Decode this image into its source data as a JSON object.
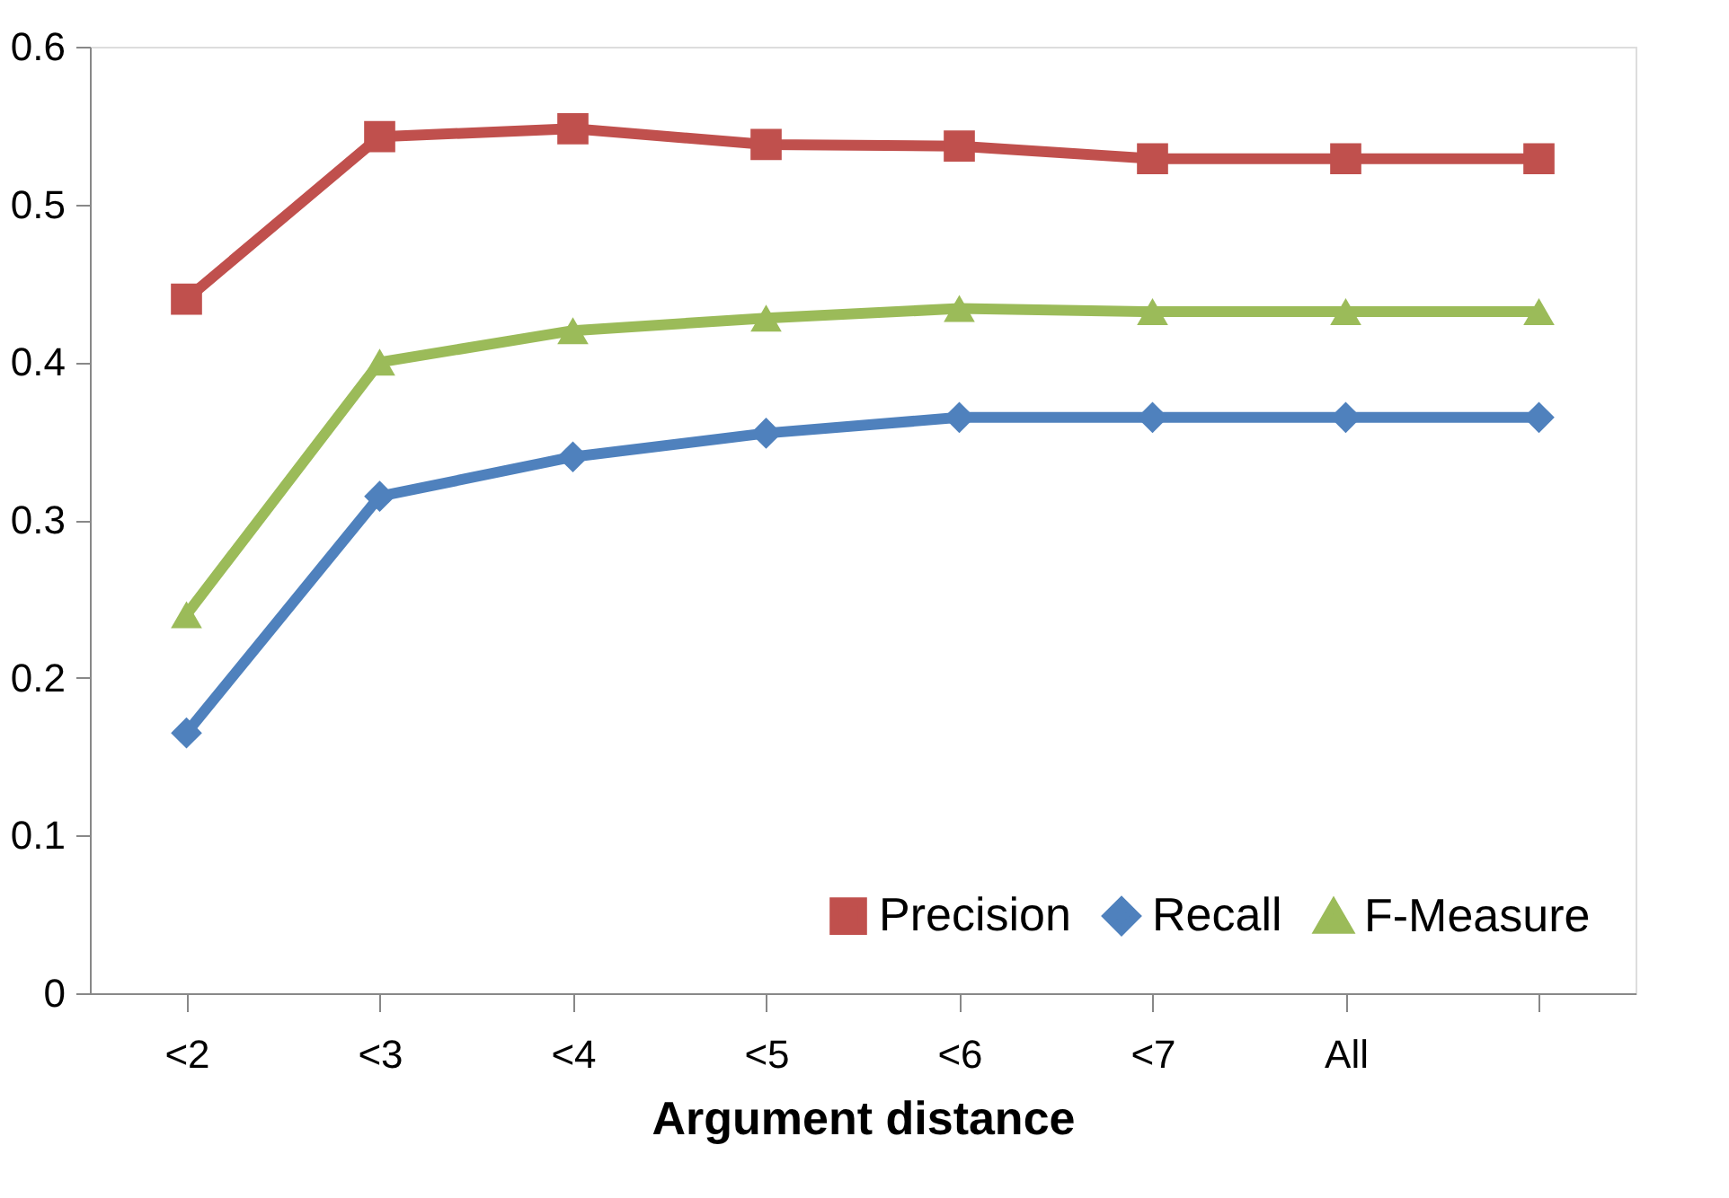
{
  "chart_data": {
    "type": "line",
    "xlabel": "Argument distance",
    "categories": [
      "<2",
      "<3",
      "<4",
      "<5",
      "<6",
      "<7",
      "All",
      null
    ],
    "ylim": [
      0,
      0.6
    ],
    "yticks": [
      0,
      0.1,
      0.2,
      0.3,
      0.4,
      0.5,
      0.6
    ],
    "grid": false,
    "legend": "bottom right",
    "line_style": "solid",
    "series": [
      {
        "name": "Precision",
        "color": "#c0504d",
        "marker": "square",
        "values": [
          0.44,
          0.543,
          0.548,
          0.538,
          0.537,
          0.529,
          0.529,
          0.529
        ]
      },
      {
        "name": "Recall",
        "color": "#4f81bd",
        "marker": "diamond",
        "values": [
          0.165,
          0.315,
          0.34,
          0.355,
          0.365,
          0.365,
          0.365,
          0.365
        ]
      },
      {
        "name": "F-Measure",
        "color": "#9bbb59",
        "marker": "triangle",
        "values": [
          0.24,
          0.4,
          0.42,
          0.428,
          0.434,
          0.432,
          0.432,
          0.432
        ]
      }
    ]
  }
}
